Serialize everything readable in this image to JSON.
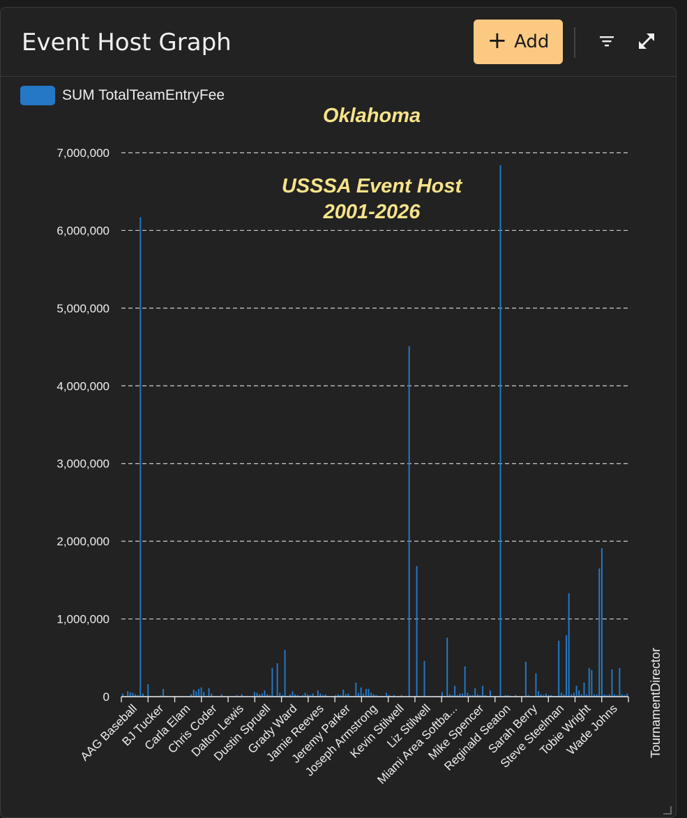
{
  "header": {
    "title": "Event Host Graph",
    "add_label": "Add",
    "add_icon": "plus-icon",
    "filter_icon": "filter-icon",
    "expand_icon": "expand-icon"
  },
  "colors": {
    "bar": "#2478c5",
    "annotation": "#f6e38a",
    "add_button": "#fcc982"
  },
  "chart_data": {
    "type": "bar",
    "title": "Oklahoma",
    "subtitle_lines": [
      "USSSA Event Host",
      "2001-2026"
    ],
    "xlabel": "TournamentDirector",
    "ylabel": "",
    "legend": {
      "position": "top-left",
      "entries": [
        "SUM TotalTeamEntryFee"
      ]
    },
    "grid": true,
    "ylim": [
      0,
      7000000
    ],
    "yticks": [
      0,
      1000000,
      2000000,
      3000000,
      4000000,
      5000000,
      6000000,
      7000000
    ],
    "ytick_labels": [
      "0",
      "1,000,000",
      "2,000,000",
      "3,000,000",
      "4,000,000",
      "5,000,000",
      "6,000,000",
      "7,000,000"
    ],
    "tick_labels": [
      "AAG Baseball",
      "BJ Tucker",
      "Carla Elam",
      "Chris Coder",
      "Dalton Lewis",
      "Dustin Spruell",
      "Grady Ward",
      "Jamie Reeves",
      "Jeremy Parker",
      "Joseph Armstrong",
      "Kevin Stilwell",
      "Liz Stilwell",
      "Miami Area Softba...",
      "Mike Spencer",
      "Reginald Seaton",
      "Sarah Berry",
      "Steve Steelman",
      "Tobie Wright",
      "Wade Johns"
    ],
    "series": [
      {
        "name": "SUM TotalTeamEntryFee",
        "values": [
          40000,
          10000,
          70000,
          55000,
          50000,
          30000,
          20000,
          6170000,
          40000,
          10000,
          160000,
          10000,
          5000,
          5000,
          10000,
          15000,
          100000,
          10000,
          5000,
          5000,
          5000,
          10000,
          5000,
          5000,
          5000,
          5000,
          5000,
          30000,
          90000,
          70000,
          100000,
          120000,
          60000,
          10000,
          110000,
          40000,
          10000,
          5000,
          5000,
          30000,
          10000,
          5000,
          5000,
          5000,
          5000,
          20000,
          5000,
          30000,
          5000,
          10000,
          5000,
          10000,
          60000,
          50000,
          30000,
          40000,
          80000,
          30000,
          20000,
          370000,
          10000,
          430000,
          50000,
          20000,
          600000,
          10000,
          30000,
          70000,
          30000,
          20000,
          10000,
          20000,
          50000,
          30000,
          20000,
          40000,
          10000,
          80000,
          40000,
          20000,
          30000,
          10000,
          5000,
          10000,
          20000,
          30000,
          20000,
          90000,
          30000,
          40000,
          10000,
          10000,
          180000,
          50000,
          120000,
          40000,
          100000,
          100000,
          50000,
          30000,
          20000,
          10000,
          10000,
          5000,
          50000,
          20000,
          10000,
          20000,
          5000,
          5000,
          20000,
          5000,
          5000,
          4510000,
          5000,
          5000,
          1680000,
          10000,
          5000,
          460000,
          5000,
          5000,
          5000,
          5000,
          5000,
          10000,
          60000,
          10000,
          760000,
          30000,
          20000,
          140000,
          20000,
          40000,
          40000,
          390000,
          50000,
          20000,
          20000,
          110000,
          30000,
          20000,
          140000,
          20000,
          10000,
          80000,
          10000,
          5000,
          5000,
          6840000,
          10000,
          20000,
          20000,
          10000,
          5000,
          20000,
          5000,
          5000,
          5000,
          450000,
          20000,
          10000,
          5000,
          300000,
          70000,
          30000,
          20000,
          40000,
          20000,
          20000,
          10000,
          10000,
          720000,
          50000,
          30000,
          790000,
          1330000,
          30000,
          50000,
          140000,
          80000,
          30000,
          180000,
          30000,
          370000,
          340000,
          30000,
          30000,
          1650000,
          1910000,
          30000,
          20000,
          30000,
          350000,
          30000,
          20000,
          370000,
          30000,
          20000,
          40000
        ]
      }
    ]
  }
}
